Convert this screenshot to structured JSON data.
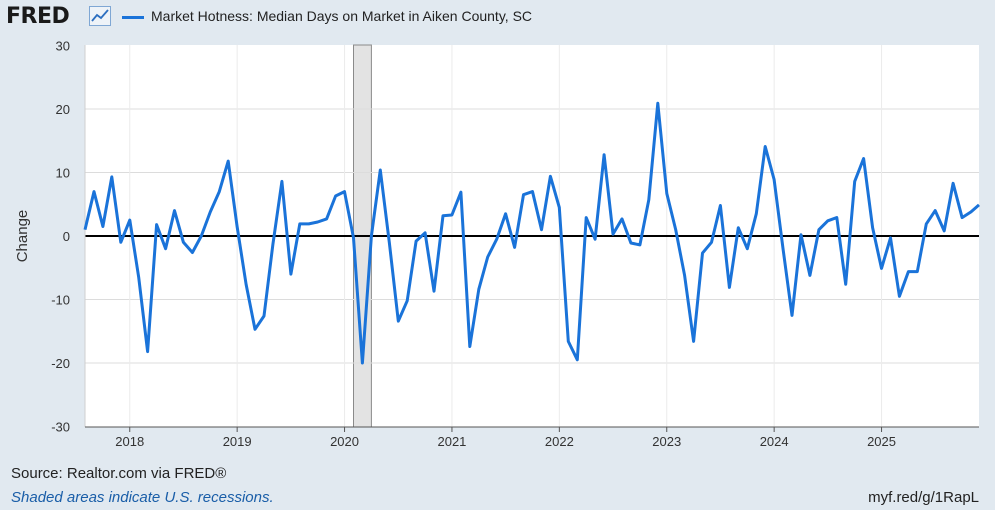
{
  "header": {
    "logo_text": "FRED",
    "logo_icon": "line-chart-icon",
    "legend_label": "Market Hotness: Median Days on Market in Aiken County, SC",
    "series_color": "#1a73d9"
  },
  "footer": {
    "source": "Source: Realtor.com via FRED®",
    "recession_note": "Shaded areas indicate U.S. recessions.",
    "short_url": "myf.red/g/1RapL"
  },
  "chart_data": {
    "type": "line",
    "title": "Market Hotness: Median Days on Market in Aiken County, SC",
    "xlabel": "",
    "ylabel": "Change",
    "ylim": [
      -30,
      30
    ],
    "yticks": [
      30,
      20,
      10,
      0,
      -10,
      -20,
      -30
    ],
    "xticks": [
      "2018",
      "2019",
      "2020",
      "2021",
      "2022",
      "2023",
      "2024",
      "2025"
    ],
    "grid": true,
    "legend_position": "top",
    "recessions": [
      {
        "start": "2020-02",
        "end": "2020-04"
      }
    ],
    "x_start": "2017-08",
    "x_end": "2025-12",
    "series": [
      {
        "name": "Market Hotness: Median Days on Market in Aiken County, SC",
        "color": "#1a73d9",
        "values": [
          1,
          7,
          1.5,
          9.3,
          -1,
          2.5,
          -6.5,
          -18.2,
          1.8,
          -2,
          4,
          -1,
          -2.6,
          0,
          3.8,
          7,
          11.8,
          1.5,
          -7.6,
          -14.7,
          -12.6,
          -1.3,
          8.6,
          -6,
          1.9,
          1.9,
          2.2,
          2.7,
          6.3,
          7,
          -0.3,
          -20,
          0,
          10.4,
          -1,
          -13.4,
          -10.2,
          -0.8,
          0.5,
          -8.7,
          3.2,
          3.3,
          6.9,
          -17.4,
          -8.4,
          -3.3,
          -0.5,
          3.5,
          -1.8,
          6.5,
          7,
          1,
          9.4,
          4.5,
          -16.6,
          -19.5,
          2.9,
          -0.5,
          12.8,
          0.3,
          2.7,
          -1.1,
          -1.4,
          5.7,
          20.9,
          6.7,
          1,
          -6.2,
          -16.6,
          -2.7,
          -1,
          4.8,
          -8.1,
          1.3,
          -2,
          3.5,
          14.1,
          8.9,
          -2.1,
          -12.5,
          0.2,
          -6.2,
          1,
          2.4,
          2.9,
          -7.6,
          8.6,
          12.2,
          1.3,
          -5.1,
          -0.3,
          -9.5,
          -5.6,
          -5.6,
          1.9,
          4,
          0.8,
          8.3,
          2.9,
          3.8,
          4.9
        ]
      }
    ]
  }
}
